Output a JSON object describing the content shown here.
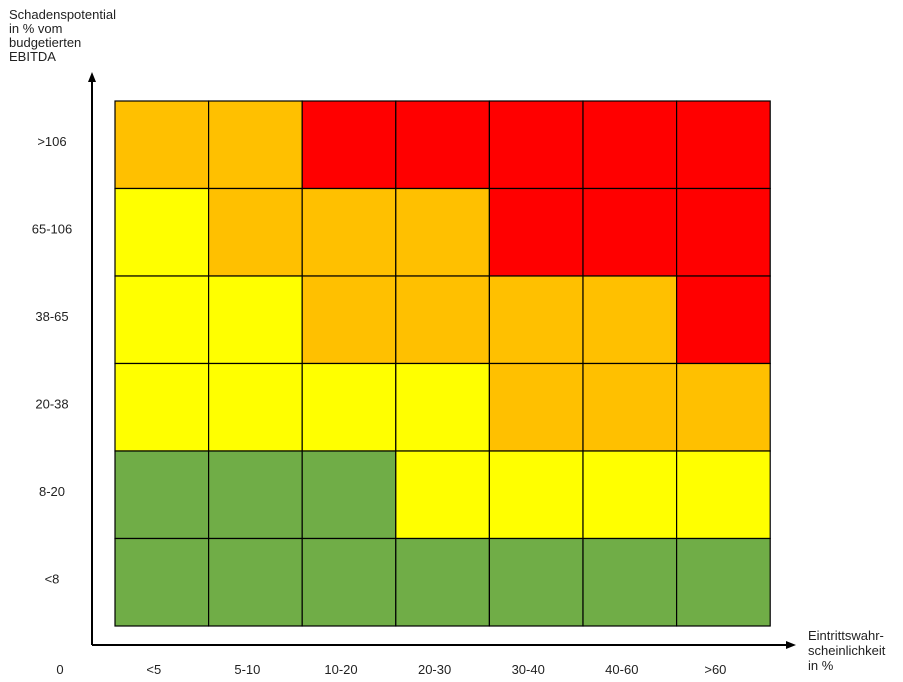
{
  "chart_data": {
    "type": "heatmap",
    "ylabel_lines": [
      "Schadenspotential",
      "in % vom",
      "budgetierten",
      "EBITDA"
    ],
    "xlabel_lines": [
      "Eintrittswahr-",
      "scheinlichkeit",
      "in %"
    ],
    "origin_label": "0",
    "x_categories": [
      "<5",
      "5-10",
      "10-20",
      "20-30",
      "30-40",
      "40-60",
      ">60"
    ],
    "y_categories_top_to_bottom": [
      ">106",
      "65-106",
      "38-65",
      "20-38",
      "8-20",
      "<8"
    ],
    "risk_levels_top_to_bottom": [
      [
        "orange",
        "orange",
        "red",
        "red",
        "red",
        "red",
        "red"
      ],
      [
        "yellow",
        "orange",
        "orange",
        "orange",
        "red",
        "red",
        "red"
      ],
      [
        "yellow",
        "yellow",
        "orange",
        "orange",
        "orange",
        "orange",
        "red"
      ],
      [
        "yellow",
        "yellow",
        "yellow",
        "yellow",
        "orange",
        "orange",
        "orange"
      ],
      [
        "green",
        "green",
        "green",
        "yellow",
        "yellow",
        "yellow",
        "yellow"
      ],
      [
        "green",
        "green",
        "green",
        "green",
        "green",
        "green",
        "green"
      ]
    ],
    "colors": {
      "green": "#70ad47",
      "yellow": "#ffff00",
      "orange": "#ffc000",
      "red": "#ff0000",
      "grid": "#000000",
      "axis": "#000000"
    }
  }
}
